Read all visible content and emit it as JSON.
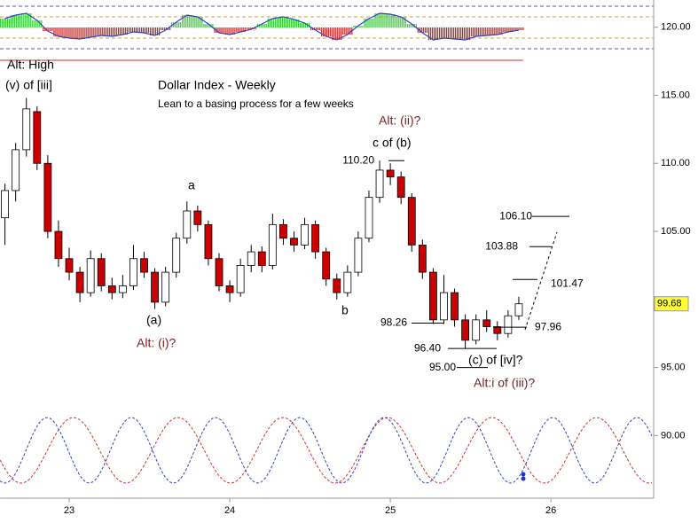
{
  "chart_data": {
    "type": "candlestick",
    "title": "Dollar Index - Weekly",
    "subtitle": "Lean to a basing process for a few weeks",
    "categories": [
      null,
      null,
      null,
      null,
      null,
      null,
      "23",
      null,
      null,
      null,
      null,
      null,
      null,
      null,
      null,
      null,
      null,
      null,
      null,
      null,
      null,
      "24",
      null,
      null,
      null,
      null,
      null,
      null,
      null,
      null,
      null,
      null,
      null,
      null,
      null,
      null,
      "25",
      null,
      null,
      null,
      null,
      null,
      null,
      null,
      null,
      null,
      null,
      null,
      null,
      null,
      null,
      "26",
      null,
      null,
      null,
      null,
      null,
      null,
      null,
      null
    ],
    "ohlc": [
      [
        106,
        108.5,
        104,
        108
      ],
      [
        108,
        111.5,
        107.2,
        111
      ],
      [
        111,
        114.8,
        110.5,
        114
      ],
      [
        113.8,
        114.2,
        109.5,
        110
      ],
      [
        110,
        110.6,
        104.5,
        105
      ],
      [
        105,
        105.8,
        102.4,
        103
      ],
      [
        103,
        103.8,
        101.4,
        102
      ],
      [
        102,
        102.4,
        99.8,
        100.5
      ],
      [
        100.5,
        103.6,
        100.2,
        103
      ],
      [
        103,
        103.4,
        100.6,
        101
      ],
      [
        101,
        101.6,
        100,
        100.5
      ],
      [
        100.5,
        101.8,
        100.1,
        101
      ],
      [
        101,
        104,
        100.7,
        103
      ],
      [
        103,
        103.5,
        101.6,
        102
      ],
      [
        102,
        102.3,
        99.3,
        99.8
      ],
      [
        99.8,
        102.4,
        99.5,
        102
      ],
      [
        102,
        104.9,
        101.6,
        104.5
      ],
      [
        104.5,
        107.2,
        104.1,
        106.5
      ],
      [
        106.5,
        106.9,
        105,
        105.5
      ],
      [
        105.5,
        105.8,
        102.5,
        103
      ],
      [
        103,
        103.4,
        100.6,
        101
      ],
      [
        101,
        101.4,
        99.8,
        100.5
      ],
      [
        100.5,
        103,
        100.2,
        102.5
      ],
      [
        102.5,
        104,
        102,
        103.5
      ],
      [
        103.5,
        103.9,
        102,
        102.5
      ],
      [
        102.5,
        106.3,
        102.2,
        105.5
      ],
      [
        105.5,
        105.9,
        104,
        104.5
      ],
      [
        104.5,
        105,
        103.5,
        104
      ],
      [
        104,
        106,
        103.7,
        105.5
      ],
      [
        105.5,
        105.8,
        103,
        103.5
      ],
      [
        103.5,
        103.8,
        101,
        101.5
      ],
      [
        101.5,
        101.9,
        100,
        100.5
      ],
      [
        100.5,
        102.5,
        100.2,
        102
      ],
      [
        102,
        105,
        101.7,
        104.5
      ],
      [
        104.5,
        108,
        104.2,
        107.5
      ],
      [
        107.5,
        110.2,
        107.1,
        109.5
      ],
      [
        109.5,
        110,
        108.4,
        109
      ],
      [
        109,
        109.4,
        107,
        107.5
      ],
      [
        107.5,
        107.8,
        103.5,
        104
      ],
      [
        104,
        104.4,
        101.5,
        102
      ],
      [
        102,
        102.3,
        98.2,
        98.5
      ],
      [
        98.5,
        101.8,
        98.2,
        100.5
      ],
      [
        100.5,
        100.8,
        98,
        98.5
      ],
      [
        98.5,
        98.9,
        96.4,
        97
      ],
      [
        97,
        98.9,
        96.7,
        98.5
      ],
      [
        98.5,
        99.2,
        97.6,
        98
      ],
      [
        98,
        98.4,
        97,
        97.5
      ],
      [
        97.5,
        99.2,
        97.2,
        98.8
      ],
      [
        98.8,
        100.2,
        98.5,
        99.68
      ],
      null,
      null,
      null,
      null,
      null,
      null,
      null,
      null,
      null,
      null,
      null
    ],
    "up_color": "#ffffff",
    "down_color": "#cc0000",
    "ylim": [
      85.4,
      122.0
    ],
    "yticks": [
      {
        "value": 90,
        "label": "90.00"
      },
      {
        "value": 95,
        "label": "95.00"
      },
      {
        "value": 105,
        "label": "105.00"
      },
      {
        "value": 110,
        "label": "110.00"
      },
      {
        "value": 115,
        "label": "115.00"
      },
      {
        "value": 120,
        "label": "120.00"
      }
    ],
    "last_price": 99.68,
    "levels": [
      {
        "value": 110.2,
        "label": "110.20"
      },
      {
        "value": 106.1,
        "label": "106.10"
      },
      {
        "value": 103.88,
        "label": "103.88"
      },
      {
        "value": 101.47,
        "label": "101.47"
      },
      {
        "value": 98.26,
        "label": "98.26"
      },
      {
        "value": 97.96,
        "label": "97.96"
      },
      {
        "value": 96.4,
        "label": "96.40"
      },
      {
        "value": 95,
        "label": "95.00"
      }
    ],
    "annotations": [
      "Alt: High",
      "(v) of [iii]",
      "Alt: (ii)?",
      "c of (b)",
      "a",
      "(a)",
      "Alt: (i)?",
      "b",
      "(c) of [iv]?",
      "Alt:i of (iii)?"
    ],
    "oscillator": {
      "ylim": [
        -24,
        24
      ],
      "up_color": "#33cc33",
      "down_color": "#cc2222",
      "values": [
        10,
        14,
        16,
        8,
        -4,
        -10,
        -12,
        -13,
        -11,
        -9,
        -10,
        -8,
        -5,
        -6,
        -9,
        -3,
        6,
        14,
        12,
        4,
        -6,
        -8,
        -5,
        -2,
        4,
        10,
        12,
        9,
        5,
        -3,
        -10,
        -14,
        -8,
        2,
        10,
        16,
        15,
        12,
        4,
        -6,
        -14,
        -12,
        -13,
        -14,
        -10,
        -9,
        -8,
        -5,
        -3,
        null,
        null,
        null,
        null,
        null,
        null,
        null,
        null,
        null,
        null,
        null
      ]
    }
  }
}
